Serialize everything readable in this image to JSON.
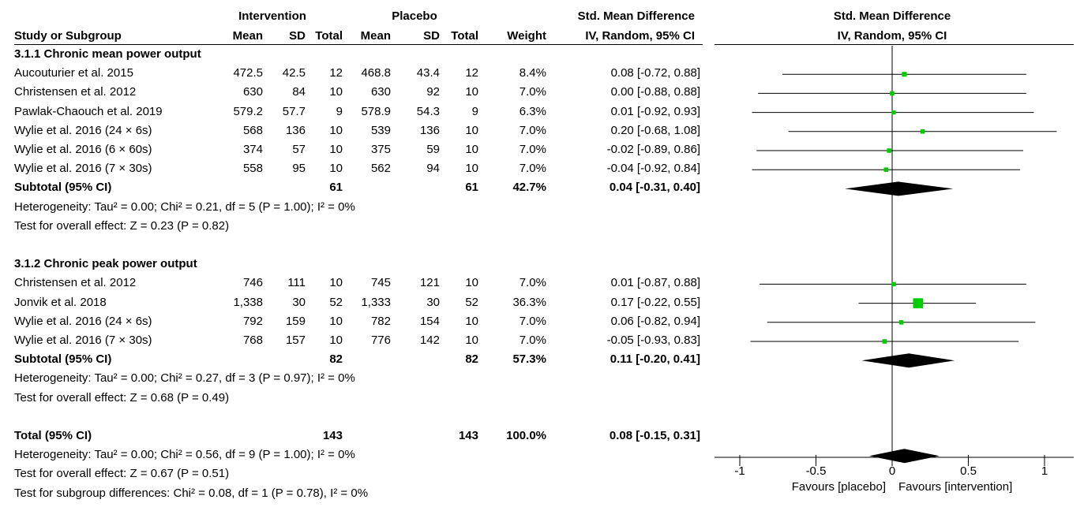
{
  "header": {
    "group1": "Intervention",
    "group2": "Placebo",
    "effect_title": "Std. Mean Difference",
    "effect_sub": "IV, Random, 95% CI",
    "plot_title": "Std. Mean Difference",
    "plot_sub": "IV, Random, 95% CI",
    "cols": {
      "study": "Study or Subgroup",
      "mean1": "Mean",
      "sd1": "SD",
      "total1": "Total",
      "mean2": "Mean",
      "sd2": "SD",
      "total2": "Total",
      "weight": "Weight"
    }
  },
  "rows": [
    {
      "kind": "group",
      "label": "3.1.1 Chronic mean power output"
    },
    {
      "kind": "study",
      "study": "Aucouturier et al. 2015",
      "mean1": "472.5",
      "sd1": "42.5",
      "total1": "12",
      "mean2": "468.8",
      "sd2": "43.4",
      "total2": "12",
      "weight": "8.4%",
      "ci": "0.08 [-0.72, 0.88]"
    },
    {
      "kind": "study",
      "study": "Christensen et al. 2012",
      "mean1": "630",
      "sd1": "84",
      "total1": "10",
      "mean2": "630",
      "sd2": "92",
      "total2": "10",
      "weight": "7.0%",
      "ci": "0.00 [-0.88, 0.88]"
    },
    {
      "kind": "study",
      "study": "Pawlak-Chaouch et al. 2019",
      "mean1": "579.2",
      "sd1": "57.7",
      "total1": "9",
      "mean2": "578.9",
      "sd2": "54.3",
      "total2": "9",
      "weight": "6.3%",
      "ci": "0.01 [-0.92, 0.93]"
    },
    {
      "kind": "study",
      "study": "Wylie et al. 2016 (24 × 6s)",
      "mean1": "568",
      "sd1": "136",
      "total1": "10",
      "mean2": "539",
      "sd2": "136",
      "total2": "10",
      "weight": "7.0%",
      "ci": "0.20 [-0.68, 1.08]"
    },
    {
      "kind": "study",
      "study": "Wylie et al. 2016 (6 × 60s)",
      "mean1": "374",
      "sd1": "57",
      "total1": "10",
      "mean2": "375",
      "sd2": "59",
      "total2": "10",
      "weight": "7.0%",
      "ci": "-0.02 [-0.89, 0.86]"
    },
    {
      "kind": "study",
      "study": "Wylie et al. 2016 (7 × 30s)",
      "mean1": "558",
      "sd1": "95",
      "total1": "10",
      "mean2": "562",
      "sd2": "94",
      "total2": "10",
      "weight": "7.0%",
      "ci": "-0.04 [-0.92, 0.84]"
    },
    {
      "kind": "subtotal",
      "study": "Subtotal (95% CI)",
      "total1": "61",
      "total2": "61",
      "weight": "42.7%",
      "ci": "0.04 [-0.31, 0.40]"
    },
    {
      "kind": "note",
      "label": "Heterogeneity: Tau² = 0.00; Chi² = 0.21, df = 5 (P = 1.00); I² = 0%"
    },
    {
      "kind": "note",
      "label": "Test for overall effect: Z = 0.23 (P = 0.82)"
    },
    {
      "kind": "spacer"
    },
    {
      "kind": "group",
      "label": "3.1.2 Chronic peak power output"
    },
    {
      "kind": "study",
      "study": "Christensen et al. 2012",
      "mean1": "746",
      "sd1": "111",
      "total1": "10",
      "mean2": "745",
      "sd2": "121",
      "total2": "10",
      "weight": "7.0%",
      "ci": "0.01 [-0.87, 0.88]"
    },
    {
      "kind": "study",
      "study": "Jonvik et al. 2018",
      "mean1": "1,338",
      "sd1": "30",
      "total1": "52",
      "mean2": "1,333",
      "sd2": "30",
      "total2": "52",
      "weight": "36.3%",
      "ci": "0.17 [-0.22, 0.55]"
    },
    {
      "kind": "study",
      "study": "Wylie et al. 2016 (24 × 6s)",
      "mean1": "792",
      "sd1": "159",
      "total1": "10",
      "mean2": "782",
      "sd2": "154",
      "total2": "10",
      "weight": "7.0%",
      "ci": "0.06 [-0.82, 0.94]"
    },
    {
      "kind": "study",
      "study": "Wylie et al. 2016 (7 × 30s)",
      "mean1": "768",
      "sd1": "157",
      "total1": "10",
      "mean2": "776",
      "sd2": "142",
      "total2": "10",
      "weight": "7.0%",
      "ci": "-0.05 [-0.93, 0.83]"
    },
    {
      "kind": "subtotal",
      "study": "Subtotal (95% CI)",
      "total1": "82",
      "total2": "82",
      "weight": "57.3%",
      "ci": "0.11 [-0.20, 0.41]"
    },
    {
      "kind": "note",
      "label": "Heterogeneity: Tau² = 0.00; Chi² = 0.27, df = 3 (P = 0.97); I² = 0%"
    },
    {
      "kind": "note",
      "label": "Test for overall effect: Z = 0.68 (P = 0.49)"
    },
    {
      "kind": "spacer"
    },
    {
      "kind": "total",
      "study": "Total (95% CI)",
      "total1": "143",
      "total2": "143",
      "weight": "100.0%",
      "ci": "0.08 [-0.15, 0.31]"
    },
    {
      "kind": "note",
      "label": "Heterogeneity: Tau² = 0.00; Chi² = 0.56, df = 9 (P = 1.00); I² = 0%"
    },
    {
      "kind": "note",
      "label": "Test for overall effect: Z = 0.67 (P = 0.51)"
    },
    {
      "kind": "note",
      "label": "Test for subgroup differences: Chi² = 0.08, df = 1 (P = 0.78), I² = 0%"
    }
  ],
  "chart_data": {
    "type": "forest",
    "xlim": [
      -1,
      1
    ],
    "ticks": [
      -1,
      -0.5,
      0,
      0.5,
      1
    ],
    "tick_labels": [
      "-1",
      "-0.5",
      "0",
      "0.5",
      "1"
    ],
    "favours_left": "Favours [placebo]",
    "favours_right": "Favours [intervention]",
    "marker_color": "#00cc00",
    "diamond_color": "#000000",
    "rows": [
      {
        "row": 1,
        "type": "study",
        "est": 0.08,
        "lo": -0.72,
        "hi": 0.88,
        "weight": 8.4
      },
      {
        "row": 2,
        "type": "study",
        "est": 0.0,
        "lo": -0.88,
        "hi": 0.88,
        "weight": 7.0
      },
      {
        "row": 3,
        "type": "study",
        "est": 0.01,
        "lo": -0.92,
        "hi": 0.93,
        "weight": 6.3
      },
      {
        "row": 4,
        "type": "study",
        "est": 0.2,
        "lo": -0.68,
        "hi": 1.08,
        "weight": 7.0
      },
      {
        "row": 5,
        "type": "study",
        "est": -0.02,
        "lo": -0.89,
        "hi": 0.86,
        "weight": 7.0
      },
      {
        "row": 6,
        "type": "study",
        "est": -0.04,
        "lo": -0.92,
        "hi": 0.84,
        "weight": 7.0
      },
      {
        "row": 7,
        "type": "diamond",
        "est": 0.04,
        "lo": -0.31,
        "hi": 0.4
      },
      {
        "row": 12,
        "type": "study",
        "est": 0.01,
        "lo": -0.87,
        "hi": 0.88,
        "weight": 7.0
      },
      {
        "row": 13,
        "type": "study",
        "est": 0.17,
        "lo": -0.22,
        "hi": 0.55,
        "weight": 36.3
      },
      {
        "row": 14,
        "type": "study",
        "est": 0.06,
        "lo": -0.82,
        "hi": 0.94,
        "weight": 7.0
      },
      {
        "row": 15,
        "type": "study",
        "est": -0.05,
        "lo": -0.93,
        "hi": 0.83,
        "weight": 7.0
      },
      {
        "row": 16,
        "type": "diamond",
        "est": 0.11,
        "lo": -0.2,
        "hi": 0.41
      },
      {
        "row": 21,
        "type": "diamond",
        "est": 0.08,
        "lo": -0.15,
        "hi": 0.31
      }
    ]
  }
}
